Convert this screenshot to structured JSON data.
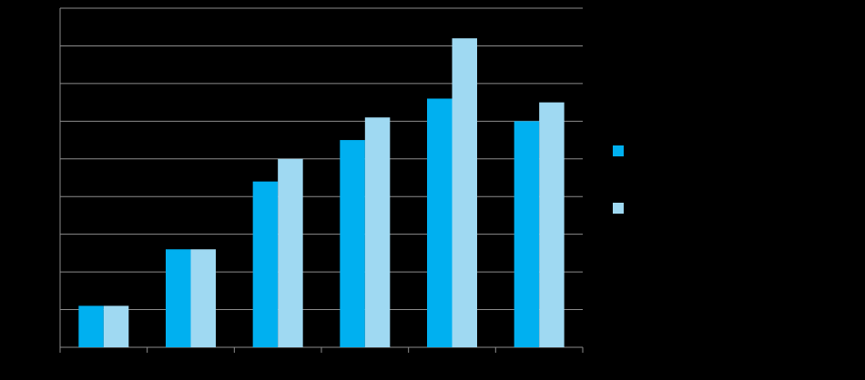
{
  "chart_data": {
    "type": "bar",
    "categories": [
      null,
      null,
      null,
      null,
      null,
      null
    ],
    "series": [
      {
        "color": "#00b0f0",
        "values": [
          1.1,
          2.6,
          4.4,
          5.5,
          6.6,
          6.0
        ]
      },
      {
        "color": "#9fd9f2",
        "values": [
          1.1,
          2.6,
          5.0,
          6.1,
          8.2,
          6.5
        ]
      }
    ],
    "ylim": [
      0,
      9
    ],
    "yticks": [
      0,
      1,
      2,
      3,
      4,
      5,
      6,
      7,
      8,
      9
    ],
    "grid": true,
    "legend": "right"
  }
}
